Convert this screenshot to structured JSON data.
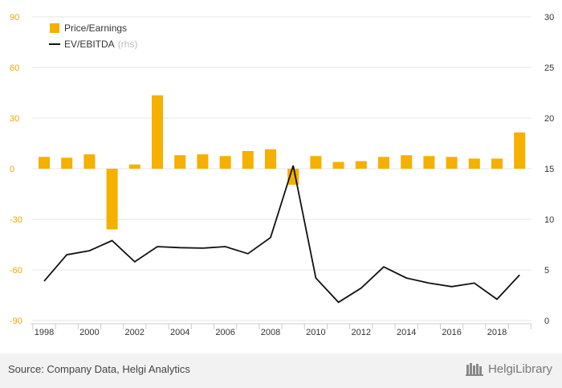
{
  "chart_data": {
    "type": "bar",
    "x": [
      "1998",
      "1999",
      "2000",
      "2001",
      "2002",
      "2003",
      "2004",
      "2005",
      "2006",
      "2007",
      "2008",
      "2009",
      "2010",
      "2011",
      "2012",
      "2013",
      "2014",
      "2015",
      "2016",
      "2017",
      "2018",
      "2019"
    ],
    "series": [
      {
        "name": "Price/Earnings",
        "type": "bar",
        "axis": "left",
        "values": [
          7,
          6.5,
          8.5,
          -36,
          2.5,
          43.5,
          8,
          8.5,
          7.5,
          10.5,
          11.5,
          -9.5,
          7.5,
          4,
          4.5,
          7,
          8,
          7.5,
          7,
          6,
          6,
          21.5
        ]
      },
      {
        "name": "EV/EBITDA",
        "name_suffix": "(rhs)",
        "type": "line",
        "axis": "right",
        "values": [
          3.9,
          6.5,
          6.9,
          7.9,
          5.8,
          7.3,
          7.2,
          7.15,
          7.3,
          6.6,
          8.2,
          15.3,
          4.2,
          1.8,
          3.2,
          5.3,
          4.2,
          3.7,
          3.35,
          3.7,
          2.1,
          4.5
        ]
      }
    ],
    "y_left": {
      "lim": [
        -90,
        90
      ],
      "ticks": [
        "90",
        "60",
        "30",
        "0",
        "-30",
        "-60",
        "-90"
      ],
      "tick_values": [
        90,
        60,
        30,
        0,
        -30,
        -60,
        -90
      ]
    },
    "y_right": {
      "lim": [
        0,
        30
      ],
      "ticks": [
        "30",
        "25",
        "20",
        "15",
        "10",
        "5",
        "0"
      ],
      "tick_values": [
        30,
        25,
        20,
        15,
        10,
        5,
        0
      ]
    },
    "x_ticks": [
      "1998",
      "2000",
      "2002",
      "2004",
      "2006",
      "2008",
      "2010",
      "2012",
      "2014",
      "2016",
      "2018"
    ],
    "legend": "top-left",
    "grid": "horizontal",
    "colors": {
      "bar": "#f5b000",
      "line": "#111111",
      "left_axis_text": "#f0a500",
      "grid": "#e6e6e6"
    }
  },
  "footer": {
    "source": "Source: Company Data, Helgi Analytics",
    "brand": "HelgiLibrary"
  }
}
